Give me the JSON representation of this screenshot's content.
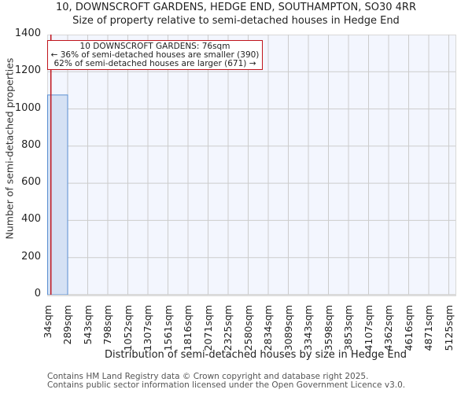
{
  "chart_data": {
    "type": "bar",
    "title": "10, DOWNSCROFT GARDENS, HEDGE END, SOUTHAMPTON, SO30 4RR",
    "subtitle": "Size of property relative to semi-detached houses in Hedge End",
    "xlabel": "Distribution of semi-detached houses by size in Hedge End",
    "ylabel": "Number of semi-detached properties",
    "ylim": [
      0,
      1400
    ],
    "yticks": [
      0,
      200,
      400,
      600,
      800,
      1000,
      1200,
      1400
    ],
    "categories": [
      "34sqm",
      "289sqm",
      "543sqm",
      "798sqm",
      "1052sqm",
      "1307sqm",
      "1561sqm",
      "1816sqm",
      "2071sqm",
      "2325sqm",
      "2580sqm",
      "2834sqm",
      "3089sqm",
      "3343sqm",
      "3598sqm",
      "3853sqm",
      "4107sqm",
      "4362sqm",
      "4616sqm",
      "4871sqm",
      "5125sqm"
    ],
    "values": [
      1075,
      0,
      0,
      0,
      0,
      0,
      0,
      0,
      0,
      0,
      0,
      0,
      0,
      0,
      0,
      0,
      0,
      0,
      0,
      0
    ],
    "grid": true,
    "bar_color": "#d5e1f4",
    "bar_edge_color": "#5b8fd0",
    "marker": {
      "value_sqm": 76,
      "color": "#c0141c"
    },
    "annotation": {
      "line1": "10 DOWNSCROFT GARDENS: 76sqm",
      "line2": "← 36% of semi-detached houses are smaller (390)",
      "line3": "62% of semi-detached houses are larger (671) →"
    }
  },
  "footer": {
    "line1": "Contains HM Land Registry data © Crown copyright and database right 2025.",
    "line2": "Contains public sector information licensed under the Open Government Licence v3.0."
  }
}
